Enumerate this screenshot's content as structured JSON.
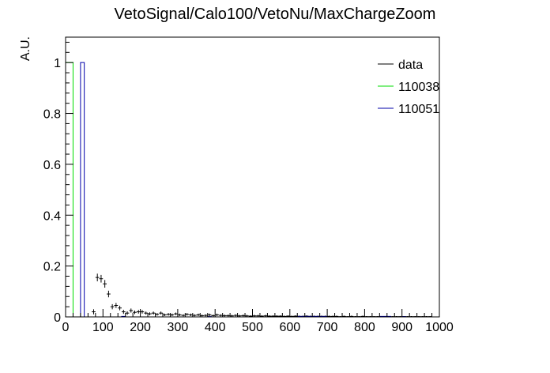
{
  "chart_data": {
    "type": "histogram",
    "title": "VetoSignal/Calo100/VetoNu/MaxChargeZoom",
    "xlabel": "",
    "ylabel": "A.U.",
    "xlim": [
      0,
      1000
    ],
    "ylim": [
      0,
      1.1
    ],
    "x_ticks": [
      0,
      100,
      200,
      300,
      400,
      500,
      600,
      700,
      800,
      900,
      1000
    ],
    "y_ticks": [
      0,
      0.2,
      0.4,
      0.6,
      0.8,
      1
    ],
    "grid": false,
    "legend_position": "top-right",
    "series": [
      {
        "name": "data",
        "color": "#000000",
        "style": "points-with-errors",
        "bin_width": 10,
        "x": [
          75,
          85,
          95,
          105,
          115,
          125,
          135,
          145,
          155,
          165,
          175,
          185,
          195,
          205,
          215,
          225,
          235,
          245,
          255,
          265,
          275,
          285,
          295,
          305,
          315,
          325,
          335,
          345,
          355,
          365,
          375,
          385,
          395,
          405,
          415,
          425,
          435,
          445,
          455,
          465,
          475,
          485,
          495,
          505,
          515,
          525,
          535,
          545,
          555,
          565,
          575,
          585,
          595,
          605,
          615,
          625,
          635,
          645,
          655,
          665,
          675,
          685,
          695,
          705,
          715,
          725,
          735,
          745,
          755,
          765,
          775,
          785,
          795,
          805,
          815,
          825,
          835,
          845,
          855,
          865,
          875,
          885,
          895,
          905,
          915,
          925,
          935,
          945,
          955,
          965,
          975
        ],
        "y": [
          0.02,
          0.155,
          0.15,
          0.13,
          0.09,
          0.04,
          0.045,
          0.035,
          0.02,
          0.015,
          0.025,
          0.018,
          0.02,
          0.02,
          0.015,
          0.012,
          0.015,
          0.01,
          0.015,
          0.008,
          0.01,
          0.008,
          0.012,
          0.008,
          0.006,
          0.01,
          0.008,
          0.006,
          0.008,
          0.005,
          0.006,
          0.008,
          0.005,
          0.008,
          0.006,
          0.005,
          0.005,
          0.004,
          0.006,
          0.004,
          0.005,
          0.004,
          0.003,
          0.004,
          0.004,
          0.003,
          0.004,
          0.003,
          0.003,
          0.003,
          0.003,
          0.002,
          0.003,
          0.002,
          0.003,
          0.002,
          0.002,
          0.003,
          0.002,
          0.002,
          0.002,
          0.002,
          0.002,
          0.002,
          0.002,
          0.002,
          0.001,
          0.002,
          0.001,
          0.002,
          0.001,
          0.001,
          0.002,
          0.001,
          0.001,
          0.001,
          0.001,
          0.001,
          0.001,
          0.001,
          0.001,
          0.001,
          0.001,
          0.001,
          0.001,
          0.001,
          0.001,
          0.001,
          0.001,
          0.001,
          0.001
        ],
        "errors": [
          0.01,
          0.015,
          0.015,
          0.015,
          0.013,
          0.01,
          0.01,
          0.009,
          0.008,
          0.007,
          0.008,
          0.007,
          0.007,
          0.007,
          0.006,
          0.006,
          0.006,
          0.005,
          0.006,
          0.005,
          0.005,
          0.005,
          0.005,
          0.005,
          0.004,
          0.005,
          0.005,
          0.004,
          0.005,
          0.004,
          0.004,
          0.005,
          0.004,
          0.005,
          0.004,
          0.004,
          0.004,
          0.004,
          0.004,
          0.004,
          0.004,
          0.004,
          0.003,
          0.004,
          0.004,
          0.003,
          0.004,
          0.003,
          0.003,
          0.003,
          0.003,
          0.003,
          0.003,
          0.003,
          0.003,
          0.003,
          0.003,
          0.003,
          0.003,
          0.003,
          0.003,
          0.003,
          0.003,
          0.003,
          0.003,
          0.003,
          0.002,
          0.003,
          0.002,
          0.003,
          0.002,
          0.002,
          0.003,
          0.002,
          0.002,
          0.002,
          0.002,
          0.002,
          0.002,
          0.002,
          0.002,
          0.002,
          0.002,
          0.002,
          0.002,
          0.002,
          0.002,
          0.002,
          0.002,
          0.002,
          0.002
        ]
      },
      {
        "name": "110038",
        "color": "#00dd00",
        "style": "step",
        "bins": [
          [
            0,
            20,
            1.0
          ]
        ]
      },
      {
        "name": "110051",
        "color": "#0000aa",
        "style": "step",
        "bins": [
          [
            40,
            50,
            1.0
          ],
          [
            150,
            160,
            0.002
          ],
          [
            380,
            390,
            0.001
          ],
          [
            620,
            700,
            0.002
          ],
          [
            840,
            870,
            0.002
          ],
          [
            900,
            910,
            0.001
          ]
        ]
      }
    ]
  }
}
